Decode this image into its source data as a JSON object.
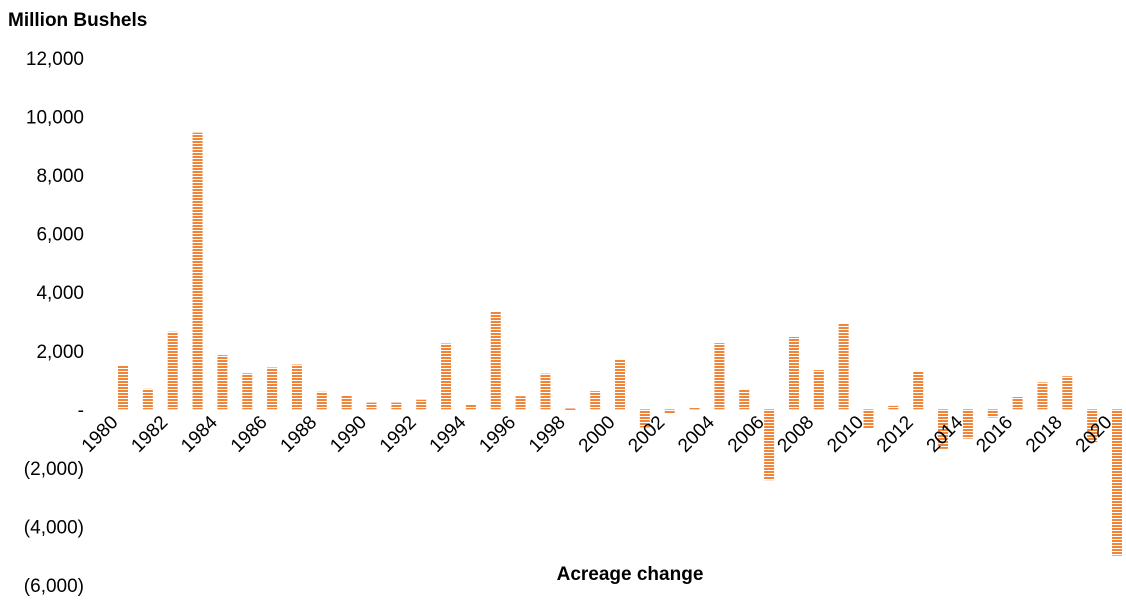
{
  "chart_data": {
    "type": "bar",
    "ylabel": "Million Bushels",
    "xlabel": "Acreage change",
    "ylim": [
      -6000,
      12000
    ],
    "y_ticks": [
      -6000,
      -4000,
      -2000,
      0,
      2000,
      4000,
      6000,
      8000,
      10000,
      12000
    ],
    "y_tick_labels": [
      "(6,000)",
      "(4,000)",
      "(2,000)",
      "-",
      "2,000",
      "4,000",
      "6,000",
      "8,000",
      "10,000",
      "12,000"
    ],
    "x_tick_labels": [
      "1980",
      "1982",
      "1984",
      "1986",
      "1988",
      "1990",
      "1992",
      "1994",
      "1996",
      "1998",
      "2000",
      "2002",
      "2004",
      "2006",
      "2008",
      "2010",
      "2012",
      "2014",
      "2016",
      "2018",
      "2020"
    ],
    "categories": [
      "1980",
      "1981",
      "1982",
      "1983",
      "1984",
      "1985",
      "1986",
      "1987",
      "1988",
      "1989",
      "1990",
      "1991",
      "1992",
      "1993",
      "1994",
      "1995",
      "1996",
      "1997",
      "1998",
      "1999",
      "2000",
      "2001",
      "2002",
      "2003",
      "2004",
      "2005",
      "2006",
      "2007",
      "2008",
      "2009",
      "2010",
      "2011",
      "2012",
      "2013",
      "2014",
      "2015",
      "2016",
      "2017",
      "2018",
      "2019",
      "2020"
    ],
    "values": [
      1480,
      700,
      2650,
      9450,
      1850,
      1230,
      1430,
      1530,
      600,
      470,
      230,
      230,
      330,
      2250,
      150,
      3350,
      450,
      1220,
      30,
      620,
      1720,
      -620,
      -130,
      60,
      2260,
      680,
      -2420,
      2470,
      1340,
      2930,
      -640,
      120,
      1290,
      -1350,
      -1000,
      -280,
      420,
      920,
      1130,
      -1120,
      -5000
    ],
    "grid": false,
    "legend": "none",
    "bar_color": "#f0853a"
  }
}
